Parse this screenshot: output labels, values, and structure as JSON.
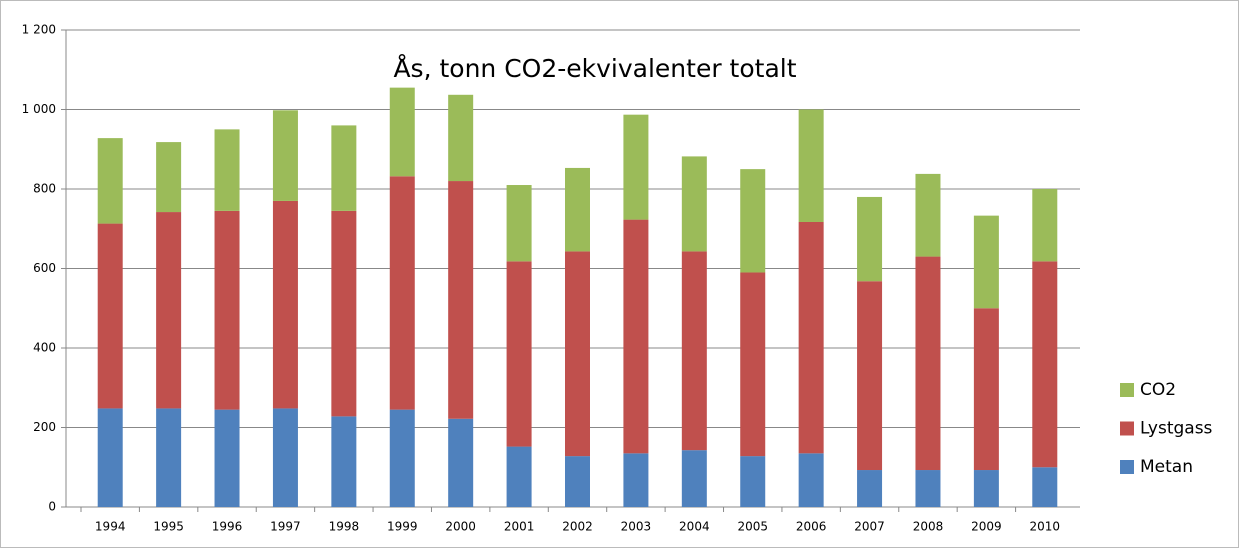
{
  "chart_data": {
    "type": "stacked_bar",
    "title": "Ås, tonn CO2-ekvivalenter totalt",
    "categories": [
      "1994",
      "1995",
      "1996",
      "1997",
      "1998",
      "1999",
      "2000",
      "2001",
      "2002",
      "2003",
      "2004",
      "2005",
      "2006",
      "2007",
      "2008",
      "2009",
      "2010"
    ],
    "series": [
      {
        "name": "Metan",
        "color": "#4f81bd",
        "values": [
          248,
          248,
          245,
          248,
          228,
          245,
          222,
          152,
          128,
          135,
          143,
          128,
          135,
          93,
          93,
          93,
          100
        ]
      },
      {
        "name": "Lystgass",
        "color": "#c0504d",
        "values": [
          465,
          494,
          500,
          522,
          517,
          587,
          598,
          466,
          515,
          588,
          500,
          462,
          582,
          475,
          537,
          407,
          518
        ]
      },
      {
        "name": "CO2",
        "color": "#9bbb59",
        "values": [
          215,
          176,
          205,
          228,
          215,
          223,
          217,
          192,
          210,
          264,
          239,
          260,
          283,
          212,
          208,
          233,
          182
        ]
      }
    ],
    "ylim": [
      0,
      1200
    ],
    "yticks": [
      0,
      200,
      400,
      600,
      800,
      {
        "value": 1000,
        "label": "1 000"
      },
      {
        "value": 1200,
        "label": "1 200"
      }
    ],
    "grid": true,
    "legend": "right"
  }
}
